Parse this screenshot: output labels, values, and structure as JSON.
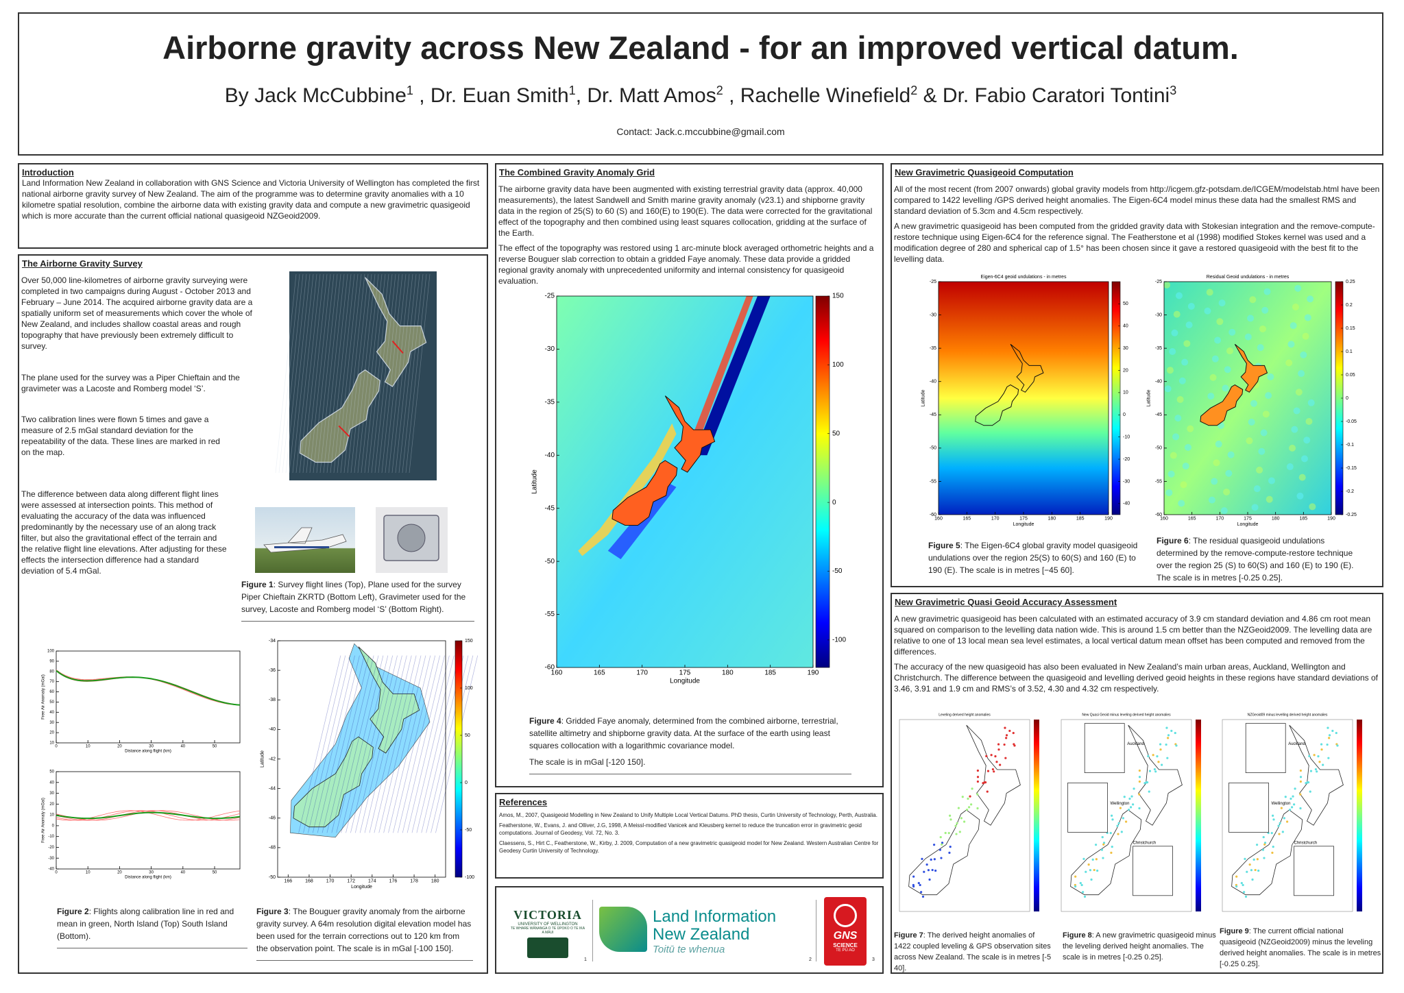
{
  "header": {
    "title": "Airborne gravity across New Zealand - for an improved vertical datum.",
    "byline": [
      {
        "text": "By Jack McCubbine",
        "sup": "1"
      },
      {
        "text": " , Dr. Euan Smith",
        "sup": "1"
      },
      {
        "text": ", Dr. Matt Amos",
        "sup": "2"
      },
      {
        "text": " , Rachelle Winefield",
        "sup": "2"
      },
      {
        "text": " & Dr. Fabio Caratori Tontini",
        "sup": "3"
      }
    ],
    "contact": "Contact: Jack.c.mccubbine@gmail.com"
  },
  "introduction": {
    "heading": "Introduction",
    "paragraphs": [
      "Land Information New Zealand in collaboration with GNS Science and Victoria University of Wellington has completed the first national airborne gravity survey of New Zealand. The aim of the programme was to determine gravity anomalies with a 10 kilometre spatial resolution, combine the airborne data with existing gravity data and compute a new gravimetric quasigeoid which is more accurate than the current official national quasigeoid NZGeoid2009."
    ]
  },
  "survey": {
    "heading": "The Airborne Gravity Survey",
    "paragraphs": [
      "Over 50,000 line-kilometres of airborne gravity surveying were completed in two campaigns during August - October 2013 and February – June 2014.  The  acquired airborne gravity data are a spatially uniform set of measurements which cover the whole of New Zealand, and includes shallow coastal areas and rough topography that have previously been extremely difficult to survey.",
      "The plane used for the survey was a Piper Chieftain and the gravimeter was a Lacoste and Romberg model ‘S’.",
      "Two calibration lines were flown 5 times and gave a measure of 2.5 mGal standard deviation for the repeatability of the data.  These lines are marked in red on the map.",
      "The difference between data along different flight lines were assessed at intersection points. This method of evaluating the accuracy of the data was influenced predominantly by the necessary use of an along track filter,  but also the gravitational effect of the terrain and the relative flight line elevations.  After adjusting for these effects the intersection difference had a standard deviation of 5.4 mGal."
    ],
    "figure1": {
      "label": "Figure 1",
      "caption": ": Survey flight lines (Top), Plane used for the survey Piper Chieftain ZKRTD (Bottom Left), Gravimeter used for the survey, Lacoste and Romberg model  ‘S’ (Bottom Right)."
    },
    "figure2": {
      "label": "Figure 2",
      "caption": ": Flights along calibration line in red and mean in green, North Island (Top) South Island (Bottom).",
      "top": {
        "xlabel": "Distance along flight (km)",
        "ylabel": "Free Air Anomaly (mGal)",
        "xlim": [
          0,
          58
        ],
        "xticks": [
          0,
          10,
          20,
          30,
          40,
          50
        ],
        "ylim": [
          10,
          100
        ],
        "yticks": [
          10,
          20,
          30,
          40,
          50,
          60,
          70,
          80,
          90,
          100
        ]
      },
      "bottom": {
        "xlabel": "Distance along flight (km)",
        "ylabel": "Free Air Anomaly (mGal)",
        "xlim": [
          0,
          58
        ],
        "xticks": [
          0,
          10,
          20,
          30,
          40,
          50
        ],
        "ylim": [
          -40,
          50
        ],
        "yticks": [
          -40,
          -30,
          -20,
          -10,
          0,
          10,
          20,
          30,
          40,
          50
        ]
      }
    },
    "figure3": {
      "label": "Figure 3",
      "caption": ": The Bouguer gravity anomaly from the airborne gravity survey. A 64m resolution digital elevation model has been used for the terrain corrections out to 120 km from the observation point. The scale is in mGal [-100 150].",
      "xlabel": "Longitude",
      "ylabel": "Latitude",
      "xlim": [
        165,
        181
      ],
      "xticks": [
        166,
        168,
        170,
        172,
        174,
        176,
        178,
        180
      ],
      "ylim": [
        -50,
        -34
      ],
      "yticks": [
        -34,
        -36,
        -38,
        -40,
        -42,
        -44,
        -46,
        -48,
        -50
      ],
      "clim": [
        -100,
        150
      ],
      "cticks": [
        150,
        100,
        50,
        0,
        -50,
        -100
      ]
    }
  },
  "grid": {
    "heading": "The Combined Gravity Anomaly Grid",
    "paragraphs": [
      "The airborne gravity data have been augmented with existing terrestrial gravity data (approx. 40,000 measurements), the latest Sandwell and Smith marine gravity anomaly (v23.1) and shipborne gravity data in the region of 25(S) to 60 (S) and 160(E) to 190(E). The data were corrected for the gravitational effect of the topography and then combined using least squares collocation, gridding at the surface of the Earth.",
      "The effect of the topography was restored using 1 arc-minute block averaged orthometric heights and a reverse Bouguer slab correction to obtain a gridded Faye anomaly. These data provide a gridded regional gravity anomaly with unprecedented uniformity and internal consistency for quasigeoid evaluation."
    ],
    "figure4": {
      "label": "Figure 4",
      "caption": ":  Gridded Faye anomaly, determined from the combined airborne, terrestrial, satellite altimetry and shipborne gravity data. At the surface of the earth using least squares collocation with a logarithmic covariance model.",
      "note": "The scale is in mGal [-120 150].",
      "xlabel": "Longitude",
      "ylabel": "Latitude",
      "xlim": [
        160,
        190
      ],
      "xticks": [
        160,
        165,
        170,
        175,
        180,
        185,
        190
      ],
      "ylim": [
        -60,
        -25
      ],
      "yticks": [
        -25,
        -30,
        -35,
        -40,
        -45,
        -50,
        -55,
        -60
      ],
      "clim": [
        -120,
        150
      ],
      "cticks": [
        150,
        100,
        50,
        0,
        -50,
        -100
      ]
    }
  },
  "references": {
    "heading": "References",
    "items": [
      "Amos, M., 2007, Quasigeoid Modelling in New Zealand to Unify Multiple Local Vertical Datums. PhD thesis, Curtin University of Technology, Perth, Australia.",
      "Featherstone, W., Evans, J. and Olliver, J.G, 1998, A Meissl-modified Vanicek and Kleusberg kernel to reduce the truncation error in gravimetric geoid computations. Journal of Geodesy, Vol. 72, No. 3.",
      "Claessens, S., Hirt C., Featherstone, W., Kirby, J. 2009, Computation of a new gravimetric quasigeoid model for New Zealand. Western Australian Centre for Geodesy Curtin University of Technology."
    ]
  },
  "logos": {
    "victoria": {
      "name": "VICTORIA",
      "sub": "UNIVERSITY OF WELLINGTON",
      "maori": "TE WHARE WĀNANGA O TE ŪPOKO O TE IKA A MĀUI",
      "mark": "1"
    },
    "linz": {
      "line1": "Land Information",
      "line2": "New Zealand",
      "motto": "Toitū te whenua",
      "mark": "2"
    },
    "gns": {
      "name": "GNS",
      "sub": "SCIENCE",
      "maori": "TE PŪ AO",
      "mark": "3"
    }
  },
  "quasigeoid": {
    "heading": "New Gravimetric Quasigeoid Computation",
    "paragraphs": [
      "All of the most recent (from 2007 onwards) global gravity models from http://icgem.gfz-potsdam.de/ICGEM/modelstab.html have been compared to 1422 levelling /GPS derived height anomalies. The Eigen-6C4 model minus these data had the smallest RMS and standard deviation of 5.3cm and 4.5cm respectively.",
      "A new gravimetric quasigeoid has been computed from the gridded gravity data with Stokesian integration and the remove-compute-restore technique using Eigen-6C4 for the reference signal.  The Featherstone et al (1998) modified Stokes kernel was used and a modification degree of 280 and spherical cap of 1.5° has been chosen since it gave a restored quasigeoid with the best fit to the levelling data."
    ],
    "figure5": {
      "label": "Figure 5",
      "caption": ": The Eigen-6C4 global gravity model quasigeoid undulations over the region 25(S) to 60(S) and 160 (E) to 190 (E). The scale is in metres [−45 60].",
      "title": "Eigen-6C4 geoid undulations - in metres",
      "xlabel": "Longitude",
      "ylabel": "Latitude",
      "xlim": [
        160,
        190
      ],
      "xticks": [
        160,
        165,
        170,
        175,
        180,
        185,
        190
      ],
      "ylim": [
        -60,
        -25
      ],
      "yticks": [
        -25,
        -30,
        -35,
        -40,
        -45,
        -50,
        -55,
        -60
      ],
      "clim": [
        -45,
        60
      ],
      "cticks": [
        50,
        40,
        30,
        20,
        10,
        0,
        -10,
        -20,
        -30,
        -40
      ]
    },
    "figure6": {
      "label": "Figure 6",
      "caption": ":  The residual quasigeoid undulations determined by the remove-compute-restore technique over the region 25 (S) to 60(S) and 160 (E) to 190 (E). The scale is in metres [-0.25 0.25].",
      "title": "Residual Geoid undulations - in metres",
      "xlabel": "Longitude",
      "ylabel": "Latitude",
      "xlim": [
        160,
        190
      ],
      "xticks": [
        160,
        165,
        170,
        175,
        180,
        185,
        190
      ],
      "ylim": [
        -60,
        -25
      ],
      "yticks": [
        -25,
        -30,
        -35,
        -40,
        -45,
        -50,
        -55,
        -60
      ],
      "clim": [
        -0.25,
        0.25
      ],
      "cticks": [
        0.25,
        0.2,
        0.15,
        0.1,
        0.05,
        0,
        -0.05,
        -0.1,
        -0.15,
        -0.2,
        -0.25
      ]
    }
  },
  "accuracy": {
    "heading": "New Gravimetric Quasi Geoid Accuracy Assessment",
    "paragraphs": [
      "A new gravimetric quasigeoid has been calculated with an estimated accuracy of 3.9 cm standard deviation  and 4.86 cm root mean squared on comparison to the levelling data nation wide. This is around 1.5 cm better than the NZGeoid2009. The levelling data are relative to one of 13 local mean sea level estimates, a local vertical  datum mean offset has been computed and removed from the differences.",
      "The accuracy of the new quasigeoid has also been evaluated in New Zealand’s main urban areas, Auckland, Wellington and Christchurch. The difference between the quasigeoid and levelling derived geoid heights in these regions have standard deviations of 3.46, 3.91 and 1.9 cm and RMS’s of 3.52, 4.30 and 4.32 cm respectively."
    ],
    "figure7": {
      "label": "Figure 7",
      "caption": ": The derived height anomalies of 1422 coupled leveling & GPS observation sites across New Zealand. The scale is in metres [-5 40].",
      "title": "Leveling derived height anomalies"
    },
    "figure8": {
      "label": "Figure 8",
      "caption": ": A new  gravimetric quasigeoid minus the leveling derived height anomalies. The scale is in metres [-0.25 0.25].",
      "title": "New Quasi Geoid minus leveling derived height anomalies",
      "cities": [
        "Auckland",
        "Wellington",
        "Christchurch"
      ]
    },
    "figure9": {
      "label": "Figure 9",
      "caption": ": The current official national quasigeoid (NZGeoid2009) minus the leveling derived height anomalies. The scale is in metres [-0.25 0.25].",
      "title": "NZGeoid09 minus levelling derived height anomalies",
      "cities": [
        "Auckland",
        "Wellington",
        "Christchurch"
      ]
    }
  }
}
